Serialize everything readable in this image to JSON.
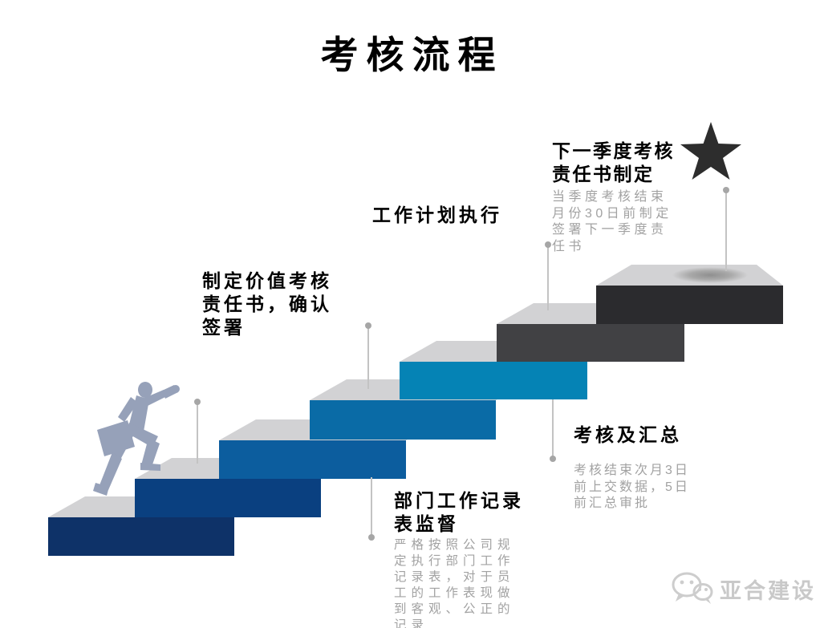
{
  "title": "考核流程",
  "stages": [
    {
      "heading": "制定价值考核\n责任书，确认\n签署",
      "body": ""
    },
    {
      "heading": "部门工作记录\n表监督",
      "body": "严格按照公司规\n定执行部门工作\n记录表，对于员\n工的工作表现做\n到客观、公正的\n记录"
    },
    {
      "heading": "工作计划执行",
      "body": ""
    },
    {
      "heading": "考核及汇总",
      "body": "考核结束次月3日\n前上交数据，5日\n前汇总审批"
    },
    {
      "heading": "下一季度考核\n责任书制定",
      "body": "当季度考核结束\n月份30日前制定\n签署下一季度责\n任书"
    }
  ],
  "steps": [
    {
      "name": "step-1",
      "color": "#0e3268"
    },
    {
      "name": "step-2",
      "color": "#0a4080"
    },
    {
      "name": "step-3",
      "color": "#0c5d9e"
    },
    {
      "name": "step-4",
      "color": "#0a6ba6"
    },
    {
      "name": "step-5",
      "color": "#0583b5"
    },
    {
      "name": "step-6",
      "color": "#414144"
    },
    {
      "name": "step-7",
      "color": "#2b2b2e"
    }
  ],
  "palette": {
    "step_top": "#d2d2d4",
    "connector_line": "#c3c3c3",
    "connector_dot": "#a6a6a6",
    "star": "#2d2d2d",
    "figure": "#96a1b9",
    "heading_text": "#000000",
    "body_text": "#a2a2a2",
    "background": "#ffffff",
    "watermark": "#c9c9c9"
  },
  "icons": {
    "star": "star-icon",
    "wechat": "wechat-icon"
  },
  "watermark": {
    "brand": "亚合建设"
  }
}
